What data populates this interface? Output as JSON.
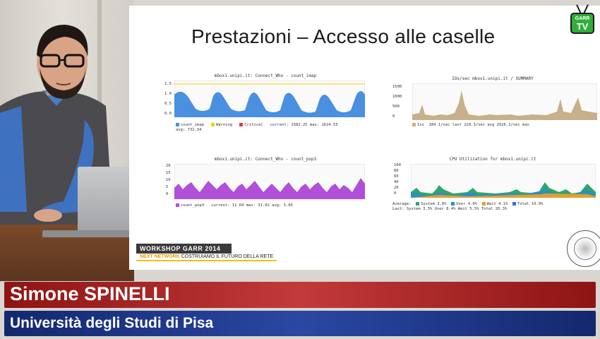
{
  "slide": {
    "title": "Prestazioni – Accesso alle caselle",
    "graphs": [
      {
        "title": "mbox1.unipi.it: Connect_Who - count_imap",
        "y_ticks": [
          "1.5 k",
          "1.0 k",
          "0.5 k",
          "0.0"
        ],
        "legend": [
          {
            "label": "count_imap",
            "color": "#4a8fe0"
          },
          {
            "label": "Warning",
            "color": "#f2d200"
          },
          {
            "label": "Critical",
            "color": "#e03a3a"
          }
        ],
        "stats": "current: 1582.25   max: 1624.55",
        "stats2": "avg: 731.34"
      },
      {
        "title": "IOs/sec mbox1.unipi.it / SUMMARY",
        "y_ticks": [
          "1500",
          "1000",
          "500",
          "0"
        ],
        "legend": [
          {
            "label": "Iss",
            "color": "#c7b08a"
          }
        ],
        "stats": "184.1/sec last   228.3/sec avg   2926.2/sec max",
        "stats2": ""
      },
      {
        "title": "mbox1.unipi.it: Connect_Who - count_pop3",
        "y_ticks": [
          "20",
          "15",
          "10",
          "5",
          "0"
        ],
        "legend": [
          {
            "label": "count_pop3",
            "color": "#b04fd8"
          }
        ],
        "stats": "current: 11.64   max: 31.02   avg: 5.65",
        "stats2": ""
      },
      {
        "title": "CPU Utilization for mbox1.unipi.it",
        "y_ticks": [
          "100",
          "80",
          "60",
          "40",
          "20",
          "0"
        ],
        "legend": [
          {
            "label": "System 3.8%",
            "color": "#2aa86a"
          },
          {
            "label": "User 4.0%",
            "color": "#2e8fbf"
          },
          {
            "label": "Wait 4.1%",
            "color": "#e0a030"
          },
          {
            "label": "Total 10.9%",
            "color": "#3a6fd8"
          }
        ],
        "stats": "Average:",
        "stats2": "Last:  System 3.3%  User 8.4%  Wait 5.5%  Total 20.3%"
      }
    ],
    "workshop_label": "WORKSHOP GARR 2014",
    "workshop_tagline_bold": "NEXT NETWORK",
    "workshop_tagline": " COSTRUIAMO IL FUTURO DELLA RETE"
  },
  "overlay": {
    "logo_top": "GARR",
    "logo_bottom": "TV",
    "speaker_name": "Simone SPINELLI",
    "speaker_affiliation": "Università degli Studi di Pisa"
  },
  "colors": {
    "name_bar": "#b02a2a",
    "affiliation_bar": "#1f3a8f",
    "logo_green": "#2fae3a"
  }
}
